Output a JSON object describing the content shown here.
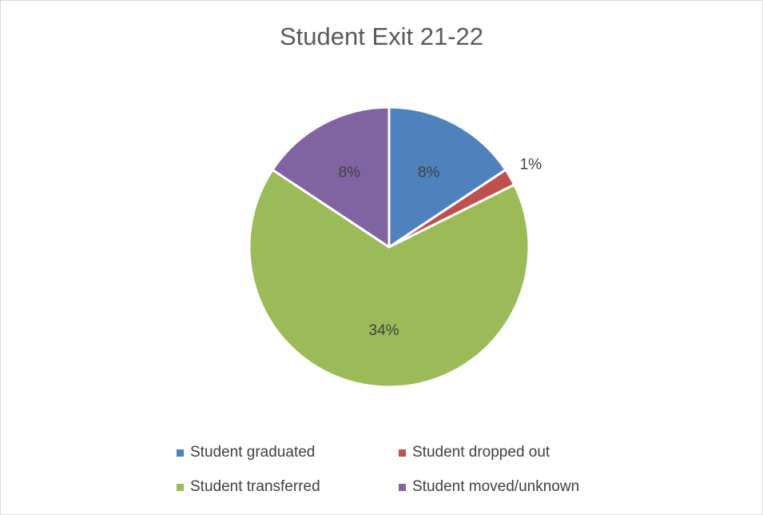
{
  "chart_data": {
    "type": "pie",
    "title": "Student Exit 21-22",
    "categories": [
      "Student graduated",
      "Student dropped out",
      "Student transferred",
      "Student moved/unknown"
    ],
    "values": [
      8,
      1,
      34,
      8
    ],
    "data_labels": [
      "8%",
      "1%",
      "34%",
      "8%"
    ],
    "colors": [
      "#4f81bd",
      "#c0504d",
      "#9bbb59",
      "#8064a2"
    ],
    "start_angle": "12 o'clock",
    "direction": "clockwise",
    "legend_position": "bottom"
  }
}
